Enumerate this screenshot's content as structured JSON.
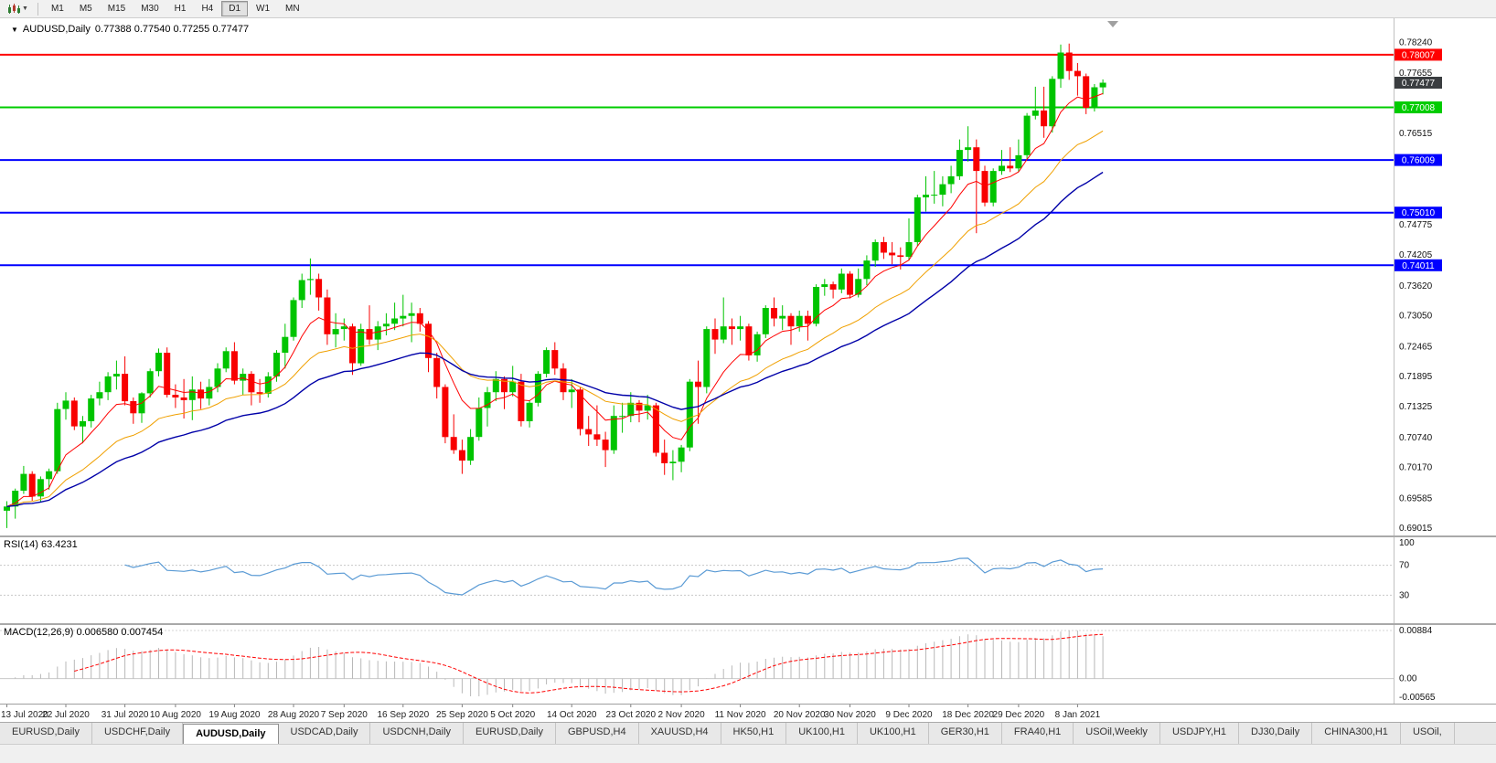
{
  "toolbar": {
    "timeframes": [
      "M1",
      "M5",
      "M15",
      "M30",
      "H1",
      "H4",
      "D1",
      "W1",
      "MN"
    ],
    "active_timeframe": "D1"
  },
  "chart": {
    "symbol_title": "AUDUSD,Daily",
    "ohlc_text": "0.77388 0.77540 0.77255 0.77477"
  },
  "chart_data": {
    "type": "candlestick",
    "symbol": "AUDUSD",
    "timeframe": "Daily",
    "ohlc_header": {
      "open": "0.77388",
      "high": "0.77540",
      "low": "0.77255",
      "close": "0.77477"
    },
    "colors": {
      "up": "#00C400",
      "down": "#F80000"
    },
    "price_range": {
      "min": 0.6888,
      "max": 0.787
    },
    "price_ticks": [
      "0.78240",
      "0.77655",
      "0.76515",
      "0.74775",
      "0.74205",
      "0.73620",
      "0.73050",
      "0.72465",
      "0.71895",
      "0.71325",
      "0.70740",
      "0.70170",
      "0.69585",
      "0.69015"
    ],
    "price_lines": [
      {
        "price": 0.78007,
        "label": "0.78007",
        "color": "#FF0000",
        "width": 2
      },
      {
        "price": 0.77008,
        "label": "0.77008",
        "color": "#00CC00",
        "width": 2
      },
      {
        "price": 0.76009,
        "label": "0.76009",
        "color": "#0000FF",
        "width": 2
      },
      {
        "price": 0.7501,
        "label": "0.75010",
        "color": "#0000FF",
        "width": 2
      },
      {
        "price": 0.74011,
        "label": "0.74011",
        "color": "#0000FF",
        "width": 2
      }
    ],
    "current_price": {
      "value": 0.77477,
      "label": "0.77477",
      "color": "#3A3D40"
    },
    "moving_averages": [
      {
        "period": 8,
        "color": "#FF0000",
        "width": 1
      },
      {
        "period": 20,
        "color": "#F0A000",
        "width": 1
      },
      {
        "period": 34,
        "color": "#0000A8",
        "width": 1.4
      }
    ],
    "candles": [
      [
        0.6935,
        0.6953,
        0.6902,
        0.6943
      ],
      [
        0.6943,
        0.6977,
        0.692,
        0.6973
      ],
      [
        0.6973,
        0.702,
        0.6967,
        0.7005
      ],
      [
        0.7005,
        0.701,
        0.6954,
        0.6962
      ],
      [
        0.6962,
        0.7,
        0.6952,
        0.6995
      ],
      [
        0.6995,
        0.7015,
        0.6975,
        0.701
      ],
      [
        0.701,
        0.714,
        0.7005,
        0.7128
      ],
      [
        0.7128,
        0.716,
        0.7108,
        0.7144
      ],
      [
        0.7144,
        0.715,
        0.7088,
        0.7095
      ],
      [
        0.7095,
        0.7115,
        0.7063,
        0.7105
      ],
      [
        0.7105,
        0.7155,
        0.7093,
        0.7148
      ],
      [
        0.7148,
        0.718,
        0.7135,
        0.716
      ],
      [
        0.716,
        0.7198,
        0.7145,
        0.719
      ],
      [
        0.719,
        0.722,
        0.7165,
        0.7195
      ],
      [
        0.7195,
        0.7228,
        0.7135,
        0.7143
      ],
      [
        0.7143,
        0.715,
        0.71,
        0.712
      ],
      [
        0.712,
        0.716,
        0.7102,
        0.7158
      ],
      [
        0.7158,
        0.7205,
        0.715,
        0.72
      ],
      [
        0.72,
        0.7243,
        0.719,
        0.7235
      ],
      [
        0.7235,
        0.7245,
        0.715,
        0.7155
      ],
      [
        0.7155,
        0.7175,
        0.713,
        0.715
      ],
      [
        0.715,
        0.7185,
        0.711,
        0.7145
      ],
      [
        0.7145,
        0.719,
        0.7107,
        0.7165
      ],
      [
        0.7165,
        0.718,
        0.7128,
        0.7148
      ],
      [
        0.7148,
        0.7185,
        0.7135,
        0.717
      ],
      [
        0.717,
        0.7215,
        0.716,
        0.7205
      ],
      [
        0.7205,
        0.7245,
        0.7198,
        0.7238
      ],
      [
        0.7238,
        0.7255,
        0.7175,
        0.7182
      ],
      [
        0.7182,
        0.7205,
        0.7155,
        0.7195
      ],
      [
        0.7195,
        0.72,
        0.7135,
        0.716
      ],
      [
        0.716,
        0.7185,
        0.714,
        0.7157
      ],
      [
        0.7157,
        0.7198,
        0.715,
        0.719
      ],
      [
        0.719,
        0.724,
        0.718,
        0.7235
      ],
      [
        0.7235,
        0.729,
        0.7205,
        0.7265
      ],
      [
        0.7265,
        0.734,
        0.7258,
        0.7335
      ],
      [
        0.7335,
        0.7385,
        0.732,
        0.7373
      ],
      [
        0.7373,
        0.7414,
        0.7345,
        0.7375
      ],
      [
        0.7375,
        0.7385,
        0.7315,
        0.734
      ],
      [
        0.734,
        0.7355,
        0.725,
        0.727
      ],
      [
        0.727,
        0.731,
        0.7245,
        0.728
      ],
      [
        0.728,
        0.73,
        0.7258,
        0.7285
      ],
      [
        0.7285,
        0.729,
        0.7193,
        0.7215
      ],
      [
        0.7215,
        0.729,
        0.721,
        0.728
      ],
      [
        0.728,
        0.7325,
        0.725,
        0.726
      ],
      [
        0.726,
        0.7295,
        0.724,
        0.7285
      ],
      [
        0.7285,
        0.731,
        0.7268,
        0.729
      ],
      [
        0.729,
        0.733,
        0.7278,
        0.73
      ],
      [
        0.73,
        0.7345,
        0.7285,
        0.7305
      ],
      [
        0.7305,
        0.733,
        0.7255,
        0.731
      ],
      [
        0.731,
        0.732,
        0.7275,
        0.729
      ],
      [
        0.729,
        0.7295,
        0.7198,
        0.7225
      ],
      [
        0.7225,
        0.7235,
        0.7148,
        0.717
      ],
      [
        0.717,
        0.7175,
        0.7063,
        0.7075
      ],
      [
        0.7075,
        0.7118,
        0.7043,
        0.705
      ],
      [
        0.705,
        0.707,
        0.7005,
        0.703
      ],
      [
        0.703,
        0.709,
        0.7022,
        0.7075
      ],
      [
        0.7075,
        0.715,
        0.7068,
        0.713
      ],
      [
        0.713,
        0.717,
        0.7095,
        0.716
      ],
      [
        0.716,
        0.72,
        0.7143,
        0.7185
      ],
      [
        0.7185,
        0.719,
        0.7128,
        0.716
      ],
      [
        0.716,
        0.721,
        0.7152,
        0.718
      ],
      [
        0.718,
        0.7195,
        0.7095,
        0.7105
      ],
      [
        0.7105,
        0.7145,
        0.7093,
        0.714
      ],
      [
        0.714,
        0.72,
        0.7133,
        0.7195
      ],
      [
        0.7195,
        0.7245,
        0.7188,
        0.724
      ],
      [
        0.724,
        0.7255,
        0.7193,
        0.7205
      ],
      [
        0.7205,
        0.7215,
        0.7145,
        0.716
      ],
      [
        0.716,
        0.7185,
        0.713,
        0.7165
      ],
      [
        0.7165,
        0.717,
        0.7078,
        0.709
      ],
      [
        0.709,
        0.7115,
        0.7058,
        0.708
      ],
      [
        0.708,
        0.7135,
        0.7058,
        0.707
      ],
      [
        0.707,
        0.7085,
        0.7018,
        0.705
      ],
      [
        0.705,
        0.7135,
        0.7043,
        0.7115
      ],
      [
        0.7115,
        0.714,
        0.7083,
        0.7115
      ],
      [
        0.7115,
        0.716,
        0.7103,
        0.714
      ],
      [
        0.714,
        0.7145,
        0.7103,
        0.7125
      ],
      [
        0.7125,
        0.7155,
        0.7108,
        0.7135
      ],
      [
        0.7135,
        0.714,
        0.7038,
        0.7045
      ],
      [
        0.7045,
        0.707,
        0.7003,
        0.7025
      ],
      [
        0.7025,
        0.705,
        0.6993,
        0.7028
      ],
      [
        0.7028,
        0.706,
        0.7008,
        0.7055
      ],
      [
        0.7055,
        0.7185,
        0.7048,
        0.718
      ],
      [
        0.718,
        0.722,
        0.71,
        0.717
      ],
      [
        0.717,
        0.7285,
        0.7158,
        0.728
      ],
      [
        0.728,
        0.73,
        0.7233,
        0.726
      ],
      [
        0.726,
        0.734,
        0.7253,
        0.7285
      ],
      [
        0.7285,
        0.73,
        0.725,
        0.728
      ],
      [
        0.728,
        0.7305,
        0.7258,
        0.7285
      ],
      [
        0.7285,
        0.729,
        0.722,
        0.723
      ],
      [
        0.723,
        0.7275,
        0.7218,
        0.727
      ],
      [
        0.727,
        0.7325,
        0.7263,
        0.732
      ],
      [
        0.732,
        0.734,
        0.7285,
        0.73
      ],
      [
        0.73,
        0.7325,
        0.7278,
        0.7305
      ],
      [
        0.7305,
        0.731,
        0.725,
        0.7285
      ],
      [
        0.7285,
        0.7315,
        0.7275,
        0.7305
      ],
      [
        0.7305,
        0.7315,
        0.7258,
        0.729
      ],
      [
        0.729,
        0.7365,
        0.7285,
        0.736
      ],
      [
        0.736,
        0.7375,
        0.7343,
        0.7365
      ],
      [
        0.7365,
        0.737,
        0.7338,
        0.7355
      ],
      [
        0.7355,
        0.7395,
        0.7348,
        0.7385
      ],
      [
        0.7385,
        0.739,
        0.7338,
        0.7345
      ],
      [
        0.7345,
        0.7395,
        0.734,
        0.7375
      ],
      [
        0.7375,
        0.742,
        0.7363,
        0.741
      ],
      [
        0.741,
        0.745,
        0.7398,
        0.7445
      ],
      [
        0.7445,
        0.7455,
        0.7413,
        0.7425
      ],
      [
        0.7425,
        0.7445,
        0.7403,
        0.742
      ],
      [
        0.742,
        0.7435,
        0.7393,
        0.7417
      ],
      [
        0.7417,
        0.749,
        0.741,
        0.7445
      ],
      [
        0.7445,
        0.7535,
        0.7438,
        0.753
      ],
      [
        0.753,
        0.757,
        0.7503,
        0.7535
      ],
      [
        0.7535,
        0.758,
        0.7518,
        0.7535
      ],
      [
        0.7535,
        0.757,
        0.7513,
        0.7555
      ],
      [
        0.7555,
        0.759,
        0.7538,
        0.757
      ],
      [
        0.757,
        0.764,
        0.7563,
        0.762
      ],
      [
        0.762,
        0.7665,
        0.7598,
        0.7625
      ],
      [
        0.7625,
        0.764,
        0.7462,
        0.758
      ],
      [
        0.758,
        0.759,
        0.7513,
        0.752
      ],
      [
        0.752,
        0.7585,
        0.7513,
        0.758
      ],
      [
        0.758,
        0.762,
        0.7573,
        0.759
      ],
      [
        0.759,
        0.7625,
        0.7578,
        0.7585
      ],
      [
        0.7585,
        0.764,
        0.7578,
        0.761
      ],
      [
        0.761,
        0.769,
        0.7603,
        0.7685
      ],
      [
        0.7685,
        0.774,
        0.7678,
        0.7695
      ],
      [
        0.7695,
        0.774,
        0.7643,
        0.7665
      ],
      [
        0.7665,
        0.776,
        0.7653,
        0.7755
      ],
      [
        0.7755,
        0.782,
        0.7738,
        0.7805
      ],
      [
        0.7805,
        0.7822,
        0.7753,
        0.777
      ],
      [
        0.777,
        0.7785,
        0.7723,
        0.776
      ],
      [
        0.776,
        0.7765,
        0.7688,
        0.77
      ],
      [
        0.77,
        0.7745,
        0.7693,
        0.7739
      ],
      [
        0.77388,
        0.7754,
        0.77255,
        0.77477
      ]
    ],
    "date_labels": [
      {
        "index": 0,
        "label": "13 Jul 2020"
      },
      {
        "index": 7,
        "label": "22 Jul 2020"
      },
      {
        "index": 14,
        "label": "31 Jul 2020"
      },
      {
        "index": 20,
        "label": "10 Aug 2020"
      },
      {
        "index": 27,
        "label": "19 Aug 2020"
      },
      {
        "index": 34,
        "label": "28 Aug 2020"
      },
      {
        "index": 40,
        "label": "7 Sep 2020"
      },
      {
        "index": 47,
        "label": "16 Sep 2020"
      },
      {
        "index": 54,
        "label": "25 Sep 2020"
      },
      {
        "index": 60,
        "label": "5 Oct 2020"
      },
      {
        "index": 67,
        "label": "14 Oct 2020"
      },
      {
        "index": 74,
        "label": "23 Oct 2020"
      },
      {
        "index": 80,
        "label": "2 Nov 2020"
      },
      {
        "index": 87,
        "label": "11 Nov 2020"
      },
      {
        "index": 94,
        "label": "20 Nov 2020"
      },
      {
        "index": 100,
        "label": "30 Nov 2020"
      },
      {
        "index": 107,
        "label": "9 Dec 2020"
      },
      {
        "index": 114,
        "label": "18 Dec 2020"
      },
      {
        "index": 120,
        "label": "29 Dec 2020"
      },
      {
        "index": 127,
        "label": "8 Jan 2021"
      }
    ],
    "indicators": {
      "rsi": {
        "label": "RSI(14) 63.4231",
        "period": 14,
        "value": "63.4231",
        "levels": [
          70,
          30
        ],
        "scale_labels": [
          "100",
          "70",
          "30"
        ],
        "color": "#5B9BD5"
      },
      "macd": {
        "label": "MACD(12,26,9) 0.006580 0.007454",
        "fast": 12,
        "slow": 26,
        "signal": 9,
        "macd_value": "0.006580",
        "signal_value": "0.007454",
        "scale_labels": [
          "0.00884",
          "0.00",
          "-0.00565"
        ],
        "histogram_color": "#B8B8B8",
        "signal_color": "#FF0000"
      }
    }
  },
  "bottom_tabs": {
    "active_index": 2,
    "tabs": [
      "EURUSD,Daily",
      "USDCHF,Daily",
      "AUDUSD,Daily",
      "USDCAD,Daily",
      "USDCNH,Daily",
      "EURUSD,Daily",
      "GBPUSD,H4",
      "XAUUSD,H4",
      "HK50,H1",
      "UK100,H1",
      "UK100,H1",
      "GER30,H1",
      "FRA40,H1",
      "USOil,Weekly",
      "USDJPY,H1",
      "DJ30,Daily",
      "CHINA300,H1",
      "USOil,"
    ]
  }
}
